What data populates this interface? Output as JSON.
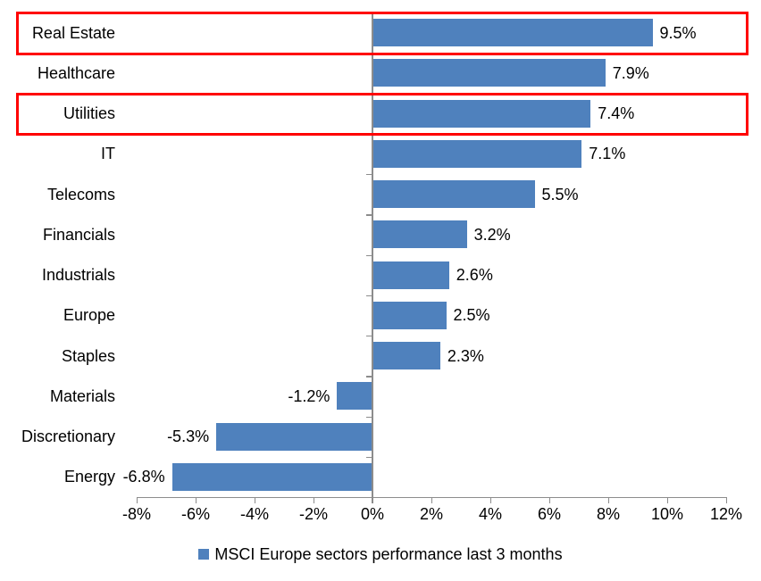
{
  "chart_data": {
    "type": "bar",
    "orientation": "horizontal",
    "title": "",
    "legend_label": "MSCI Europe sectors performance last 3 months",
    "categories": [
      "Real Estate",
      "Healthcare",
      "Utilities",
      "IT",
      "Telecoms",
      "Financials",
      "Industrials",
      "Europe",
      "Staples",
      "Materials",
      "Discretionary",
      "Energy"
    ],
    "values": [
      9.5,
      7.9,
      7.4,
      7.1,
      5.5,
      3.2,
      2.6,
      2.5,
      2.3,
      -1.2,
      -5.3,
      -6.8
    ],
    "data_labels": [
      "9.5%",
      "7.9%",
      "7.4%",
      "7.1%",
      "5.5%",
      "3.2%",
      "2.6%",
      "2.5%",
      "2.3%",
      "-1.2%",
      "-5.3%",
      "-6.8%"
    ],
    "x_tick_labels": [
      "-8%",
      "-6%",
      "-4%",
      "-2%",
      "0%",
      "2%",
      "4%",
      "6%",
      "8%",
      "10%",
      "12%"
    ],
    "xlim": [
      -8,
      12
    ],
    "x_tick_step": 2,
    "grid": "off",
    "legend_position": "bottom-center",
    "bar_color": "#4F81BD",
    "axis_color": "#8C8C8C",
    "text_color": "#000000",
    "highlight_box_color": "#FF0000",
    "highlighted_categories": [
      "Real Estate",
      "Utilities"
    ]
  }
}
